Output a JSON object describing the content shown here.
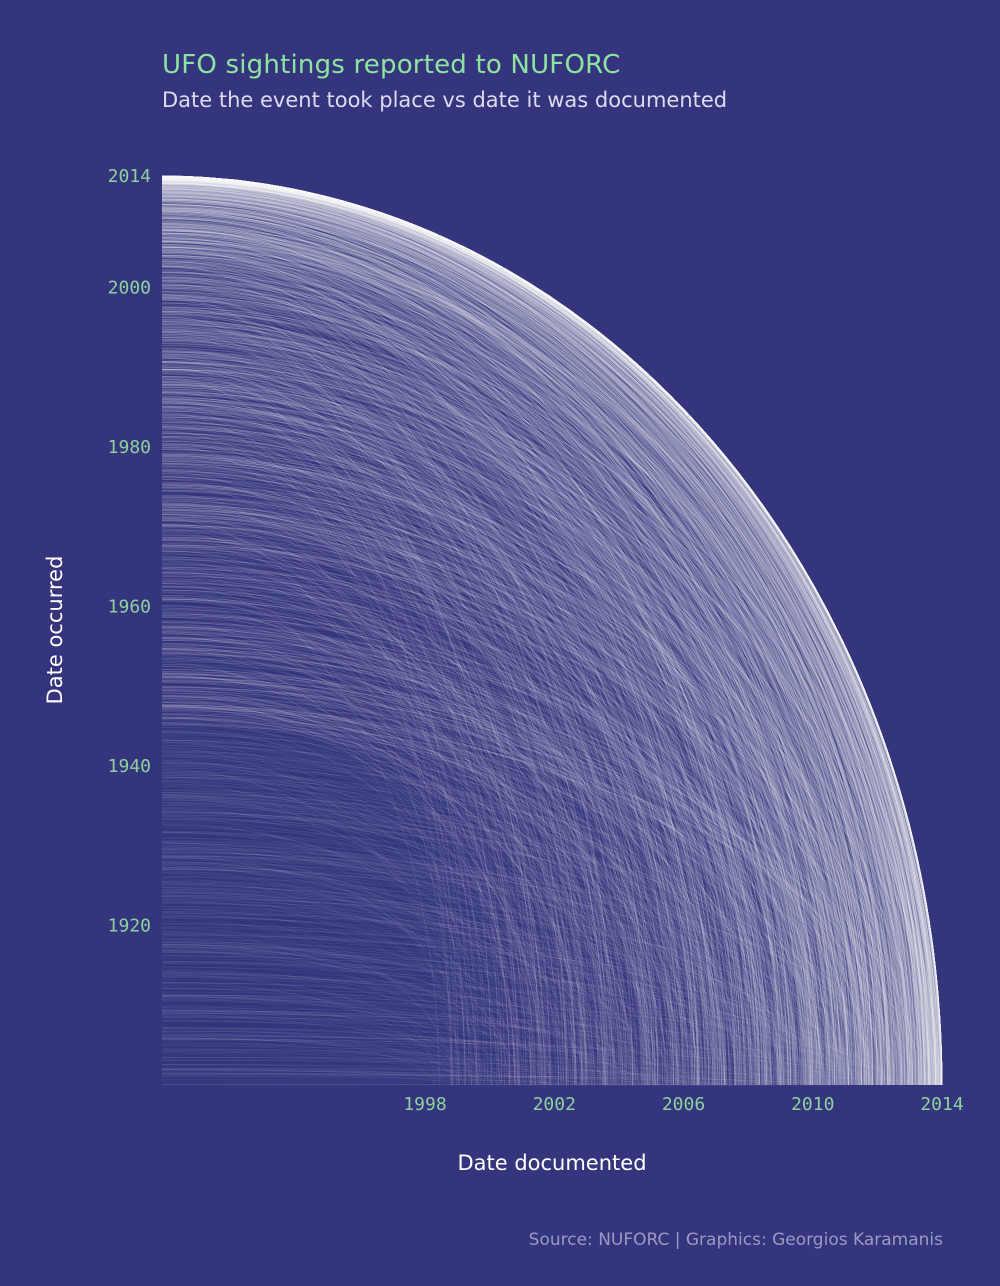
{
  "title": "UFO sightings reported to NUFORC",
  "subtitle": "Date the event took place vs date it was documented",
  "caption": "Source: NUFORC | Graphics: Georgios Karamanis",
  "colors": {
    "background": "#34357c",
    "title": "#8fe3a0",
    "tick_labels": "#8fd19e",
    "lines": "#ffffff"
  },
  "chart_data": {
    "type": "line",
    "description_style": "quarter-circle arcs, one per sighting, from date occurred (y) to date documented (x)",
    "xlabel": "Date documented",
    "ylabel": "Date occurred",
    "x_ticks": [
      "1998",
      "2002",
      "2006",
      "2010",
      "2014"
    ],
    "y_ticks": [
      "1920",
      "1940",
      "1960",
      "1980",
      "2000",
      "2014"
    ],
    "xlim": [
      1998,
      2014
    ],
    "ylim": [
      1900,
      2014
    ],
    "grid": false,
    "legend": "none"
  }
}
